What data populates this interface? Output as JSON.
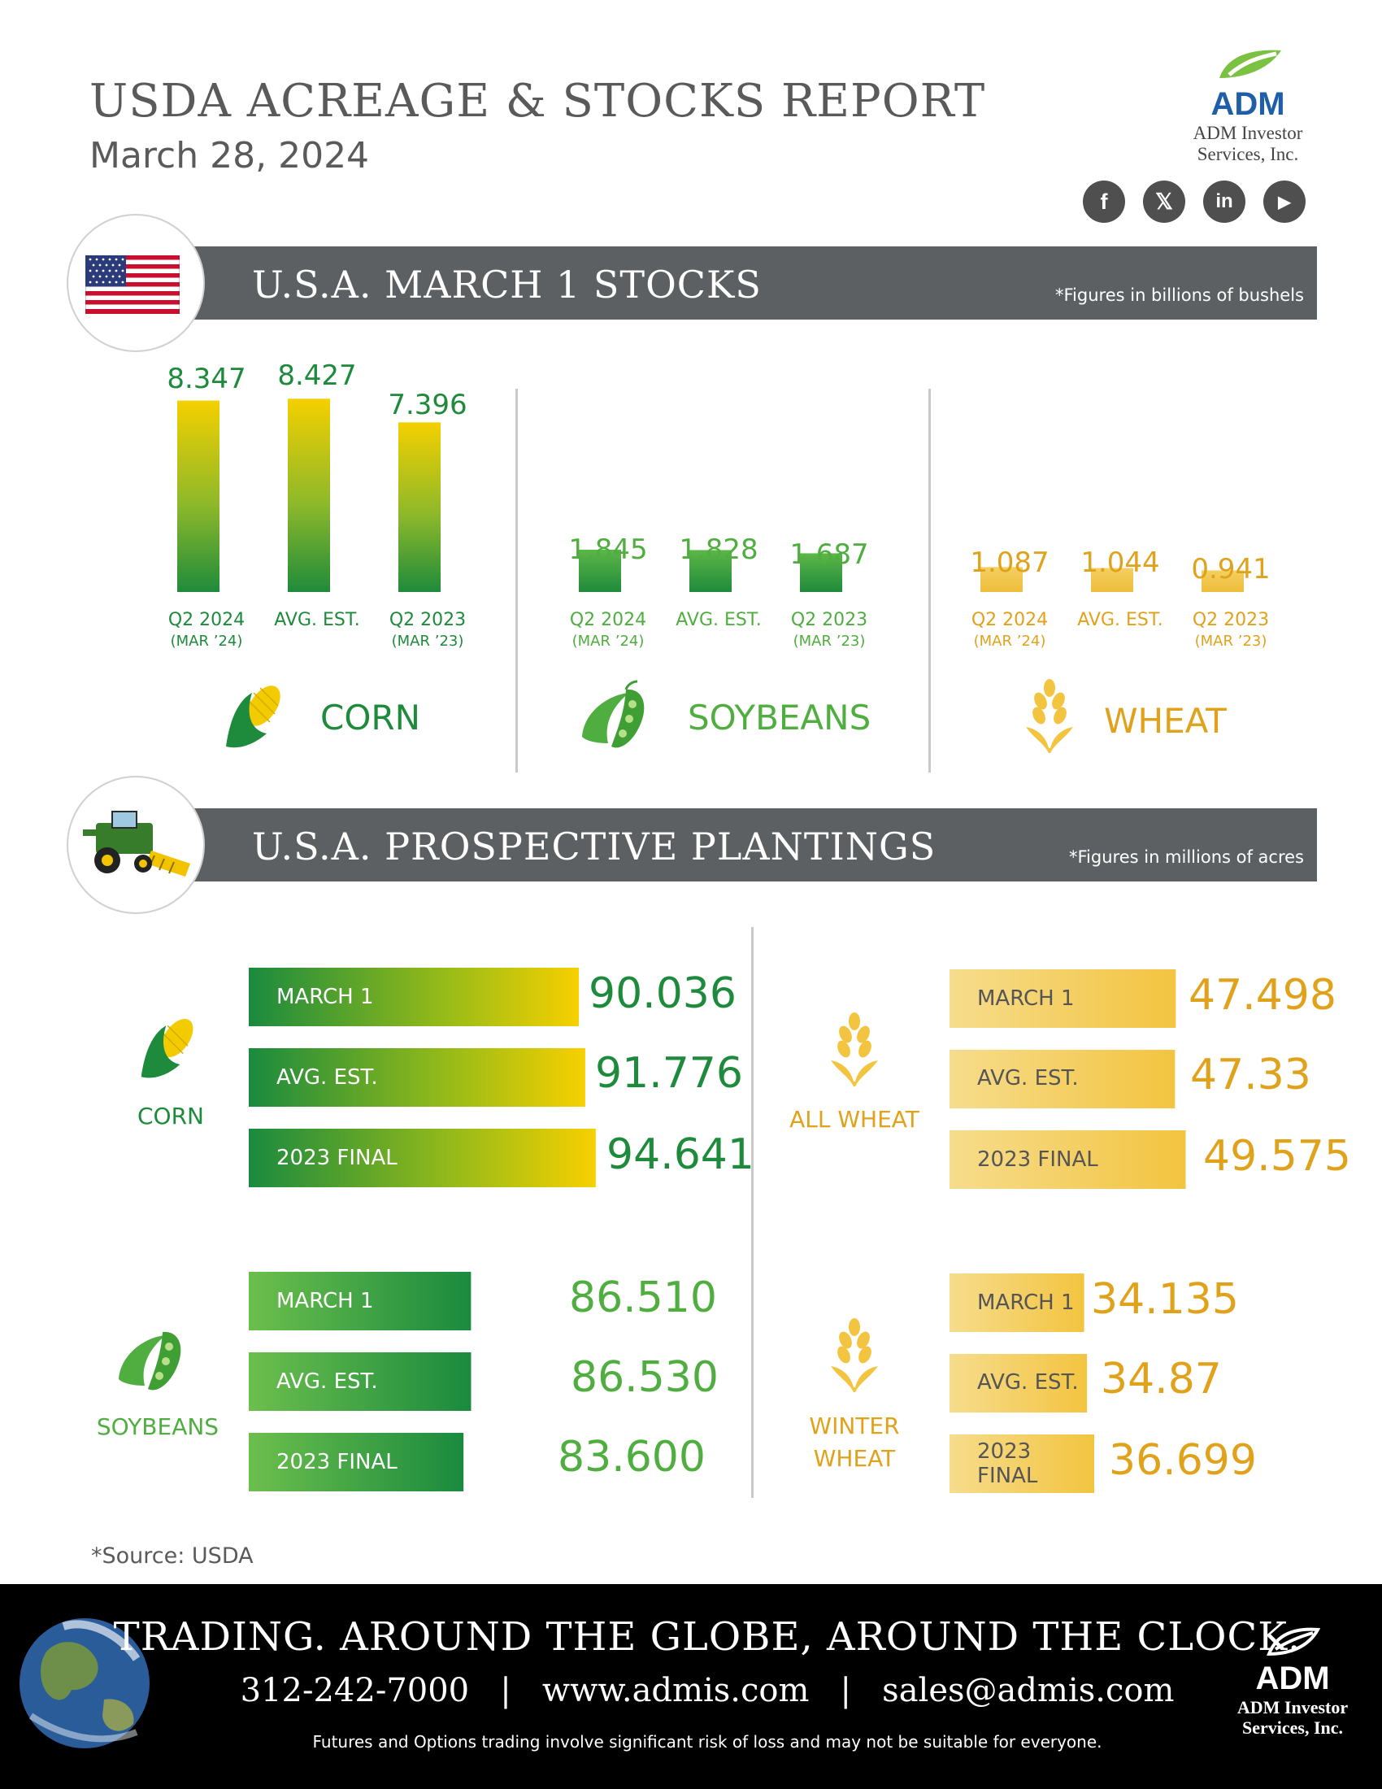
{
  "header": {
    "title": "USDA ACREAGE & STOCKS REPORT",
    "date": "March 28, 2024",
    "logo_text": "ADM",
    "logo_sub1": "ADM Investor",
    "logo_sub2": "Services, Inc.",
    "social": [
      "f",
      "𝕏",
      "in",
      "▶"
    ]
  },
  "stocks": {
    "band_title": "U.S.A. MARCH 1 STOCKS",
    "note": "*Figures in billions of bushels",
    "crops": [
      {
        "name": "CORN",
        "color": "#1e8a3c",
        "bars": [
          {
            "value": "8.347",
            "label": "Q2 2024",
            "sub": "(MAR ’24)"
          },
          {
            "value": "8.427",
            "label": "AVG. EST.",
            "sub": ""
          },
          {
            "value": "7.396",
            "label": "Q2 2023",
            "sub": "(MAR ’23)"
          }
        ]
      },
      {
        "name": "SOYBEANS",
        "color": "#4fae3f",
        "bars": [
          {
            "value": "1.845",
            "label": "Q2 2024",
            "sub": "(MAR ’24)"
          },
          {
            "value": "1.828",
            "label": "AVG. EST.",
            "sub": ""
          },
          {
            "value": "1.687",
            "label": "Q2 2023",
            "sub": "(MAR ’23)"
          }
        ]
      },
      {
        "name": "WHEAT",
        "color": "#e1a21b",
        "bars": [
          {
            "value": "1.087",
            "label": "Q2 2024",
            "sub": "(MAR ’24)"
          },
          {
            "value": "1.044",
            "label": "AVG. EST.",
            "sub": ""
          },
          {
            "value": "0.941",
            "label": "Q2 2023",
            "sub": "(MAR ’23)"
          }
        ]
      }
    ]
  },
  "plantings": {
    "band_title": "U.S.A. PROSPECTIVE PLANTINGS",
    "note": "*Figures in millions of acres",
    "groups": [
      {
        "name": "CORN",
        "rows": [
          {
            "label": "MARCH 1",
            "value": "90.036"
          },
          {
            "label": "AVG. EST.",
            "value": "91.776"
          },
          {
            "label": "2023 FINAL",
            "value": "94.641"
          }
        ]
      },
      {
        "name": "SOYBEANS",
        "rows": [
          {
            "label": "MARCH 1",
            "value": "86.510"
          },
          {
            "label": "AVG. EST.",
            "value": "86.530"
          },
          {
            "label": "2023 FINAL",
            "value": "83.600"
          }
        ]
      },
      {
        "name": "ALL WHEAT",
        "rows": [
          {
            "label": "MARCH 1",
            "value": "47.498"
          },
          {
            "label": "AVG. EST.",
            "value": "47.33"
          },
          {
            "label": "2023 FINAL",
            "value": "49.575"
          }
        ]
      },
      {
        "name1": "WINTER",
        "name2": "WHEAT",
        "rows": [
          {
            "label": "MARCH 1",
            "value": "34.135"
          },
          {
            "label": "AVG. EST.",
            "value": "34.87"
          },
          {
            "label": "2023 FINAL",
            "value": "36.699"
          }
        ]
      }
    ]
  },
  "source": "*Source: USDA",
  "footer": {
    "tagline": "TRADING. AROUND THE GLOBE, AROUND THE CLOCK.",
    "contact": "312-242-7000   |   www.admis.com   |   sales@admis.com",
    "disclaimer": "Futures and Options trading involve significant risk of loss and may not be suitable for everyone.",
    "logo_text": "ADM",
    "logo_sub1": "ADM Investor",
    "logo_sub2": "Services, Inc."
  },
  "chart_data": [
    {
      "type": "bar",
      "title": "U.S.A. MARCH 1 STOCKS",
      "ylabel": "*Figures in billions of bushels",
      "categories": [
        "Q2 2024 (MAR ’24)",
        "AVG. EST.",
        "Q2 2023 (MAR ’23)"
      ],
      "series": [
        {
          "name": "CORN",
          "values": [
            8.347,
            8.427,
            7.396
          ]
        },
        {
          "name": "SOYBEANS",
          "values": [
            1.845,
            1.828,
            1.687
          ]
        },
        {
          "name": "WHEAT",
          "values": [
            1.087,
            1.044,
            0.941
          ]
        }
      ]
    },
    {
      "type": "bar",
      "title": "U.S.A. PROSPECTIVE PLANTINGS",
      "xlabel": "*Figures in millions of acres",
      "categories": [
        "MARCH 1",
        "AVG. EST.",
        "2023 FINAL"
      ],
      "series": [
        {
          "name": "CORN",
          "values": [
            90.036,
            91.776,
            94.641
          ]
        },
        {
          "name": "SOYBEANS",
          "values": [
            86.51,
            86.53,
            83.6
          ]
        },
        {
          "name": "ALL WHEAT",
          "values": [
            47.498,
            47.33,
            49.575
          ]
        },
        {
          "name": "WINTER WHEAT",
          "values": [
            34.135,
            34.87,
            36.699
          ]
        }
      ]
    }
  ]
}
